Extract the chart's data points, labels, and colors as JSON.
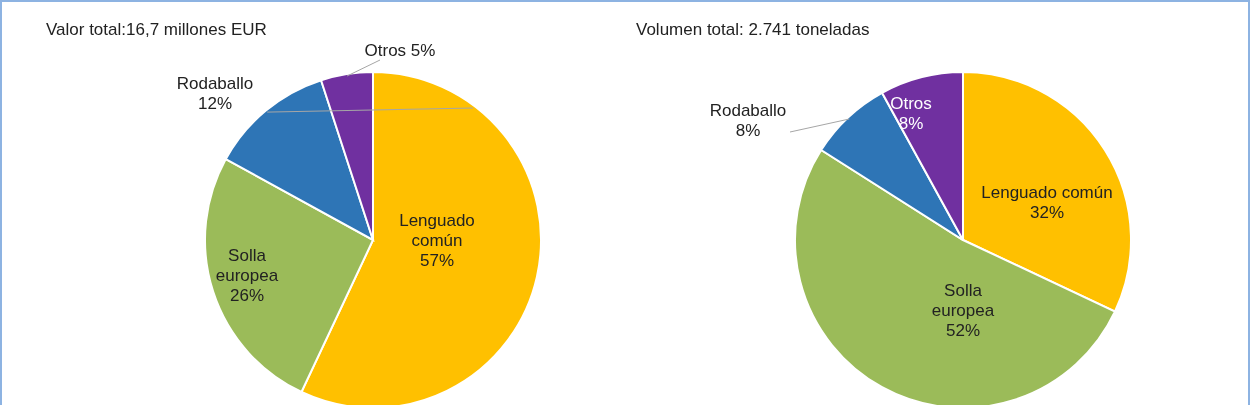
{
  "chart_data": [
    {
      "type": "pie",
      "title": "Valor total:16,7 millones EUR",
      "categories": [
        "Lenguado común",
        "Solla europea",
        "Rodaballo",
        "Otros"
      ],
      "values": [
        57,
        26,
        12,
        5
      ],
      "colors": [
        "#ffc000",
        "#9bbb59",
        "#2e75b6",
        "#7030a0"
      ],
      "value_labels": [
        "57%",
        "26%",
        "12%",
        "5%"
      ]
    },
    {
      "type": "pie",
      "title": "Volumen total: 2.741 toneladas",
      "categories": [
        "Lenguado común",
        "Solla europea",
        "Rodaballo",
        "Otros"
      ],
      "values": [
        32,
        52,
        8,
        8
      ],
      "colors": [
        "#ffc000",
        "#9bbb59",
        "#2e75b6",
        "#7030a0"
      ],
      "value_labels": [
        "32%",
        "52%",
        "8%",
        "8%"
      ]
    }
  ]
}
